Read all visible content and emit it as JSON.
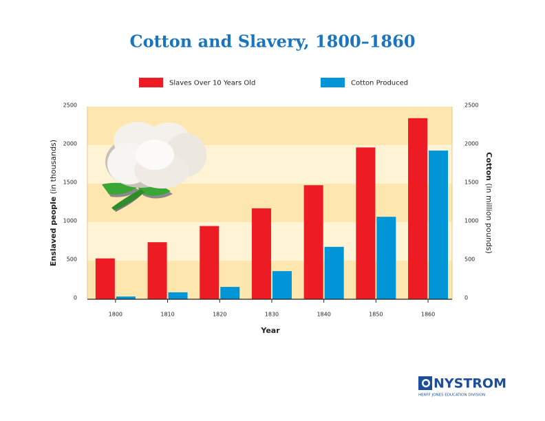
{
  "chart_data": {
    "type": "bar",
    "title": "Cotton and Slavery, 1800–1860",
    "xlabel": "Year",
    "ylabel": {
      "bold": "Enslaved people",
      "rest": "(in thousands)"
    },
    "y2label": {
      "bold": "Cotton",
      "rest": "(in million pounds)"
    },
    "categories": [
      "1800",
      "1810",
      "1820",
      "1830",
      "1840",
      "1850",
      "1860"
    ],
    "series": [
      {
        "name": "Slaves Over 10 Years Old",
        "color": "#ed1c24",
        "values": [
          530,
          740,
          950,
          1180,
          1480,
          1970,
          2350
        ]
      },
      {
        "name": "Cotton Produced",
        "color": "#0095d6",
        "axis": "y2",
        "values": [
          35,
          90,
          160,
          365,
          680,
          1070,
          1930
        ]
      }
    ],
    "ylim": [
      0,
      2500
    ],
    "yticks": [
      0,
      500,
      1000,
      1500,
      2000,
      2500
    ],
    "y2lim": [
      0,
      2500
    ],
    "y2ticks": [
      0,
      500,
      1000,
      1500,
      2000,
      2500
    ],
    "band_colors": [
      "#fde7ae",
      "#fef3d4"
    ]
  },
  "logo": {
    "name": "NYSTROM",
    "division": "HERFF JONES EDUCATION DIVISION"
  }
}
